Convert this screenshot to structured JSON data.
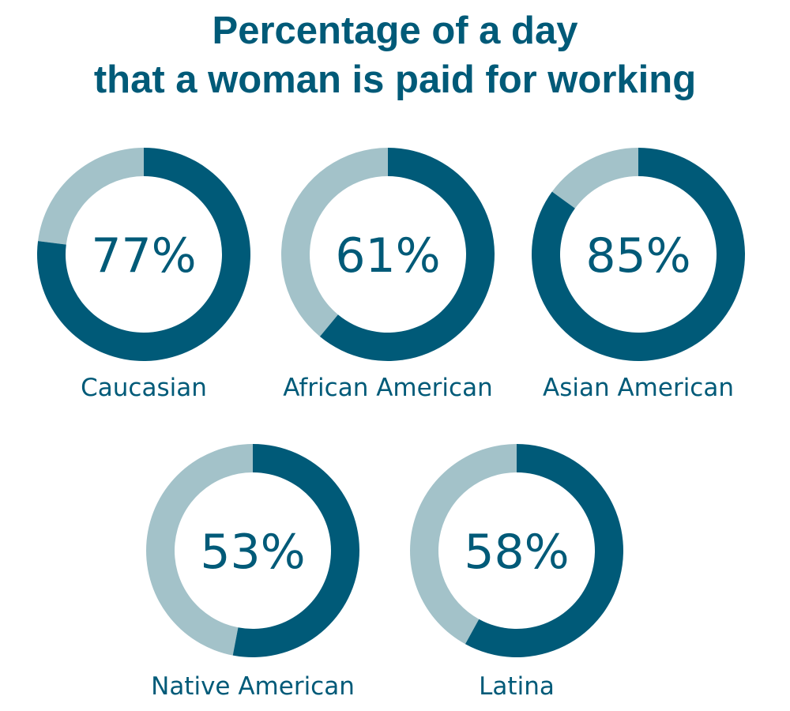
{
  "colors": {
    "accent": "#005a78",
    "remainder": "#a3c2c9",
    "text": "#005a78",
    "background": "#ffffff"
  },
  "chart_data": {
    "type": "pie",
    "title": "Percentage of a day that a woman is paid for working",
    "title_lines": [
      "Percentage of a day",
      "that a woman is paid for working"
    ],
    "value_suffix": "%",
    "categories": [
      "Caucasian",
      "African American",
      "Asian American",
      "Native American",
      "Latina"
    ],
    "values": [
      77,
      61,
      85,
      53,
      58
    ],
    "items": [
      {
        "label": "Caucasian",
        "value": 77,
        "display": "77%"
      },
      {
        "label": "African American",
        "value": 61,
        "display": "61%"
      },
      {
        "label": "Asian American",
        "value": 85,
        "display": "85%"
      },
      {
        "label": "Native American",
        "value": 53,
        "display": "53%"
      },
      {
        "label": "Latina",
        "value": 58,
        "display": "58%"
      }
    ]
  }
}
